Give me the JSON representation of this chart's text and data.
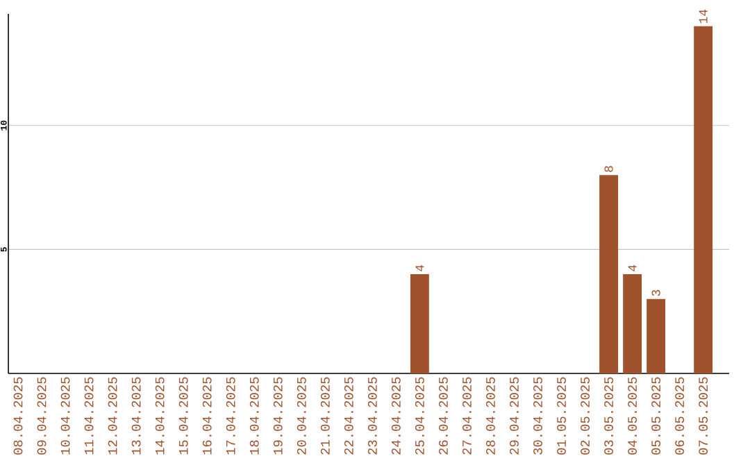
{
  "chart_data": {
    "type": "bar",
    "categories": [
      "08.04.2025",
      "09.04.2025",
      "10.04.2025",
      "11.04.2025",
      "12.04.2025",
      "13.04.2025",
      "14.04.2025",
      "15.04.2025",
      "16.04.2025",
      "17.04.2025",
      "18.04.2025",
      "19.04.2025",
      "20.04.2025",
      "21.04.2025",
      "22.04.2025",
      "23.04.2025",
      "24.04.2025",
      "25.04.2025",
      "26.04.2025",
      "27.04.2025",
      "28.04.2025",
      "29.04.2025",
      "30.04.2025",
      "01.05.2025",
      "02.05.2025",
      "03.05.2025",
      "04.05.2025",
      "05.05.2025",
      "06.05.2025",
      "07.05.2025"
    ],
    "values": [
      0,
      0,
      0,
      0,
      0,
      0,
      0,
      0,
      0,
      0,
      0,
      0,
      0,
      0,
      0,
      0,
      0,
      4,
      0,
      0,
      0,
      0,
      0,
      0,
      0,
      8,
      4,
      3,
      0,
      14
    ],
    "value_labels": [
      null,
      null,
      null,
      null,
      null,
      null,
      null,
      null,
      null,
      null,
      null,
      null,
      null,
      null,
      null,
      null,
      null,
      "4",
      null,
      null,
      null,
      null,
      null,
      null,
      null,
      "8",
      "4",
      "3",
      null,
      "14"
    ],
    "color": "#a0522d",
    "ylim": [
      0,
      14.5
    ],
    "yticks": [
      5,
      10
    ],
    "grid": "y"
  }
}
